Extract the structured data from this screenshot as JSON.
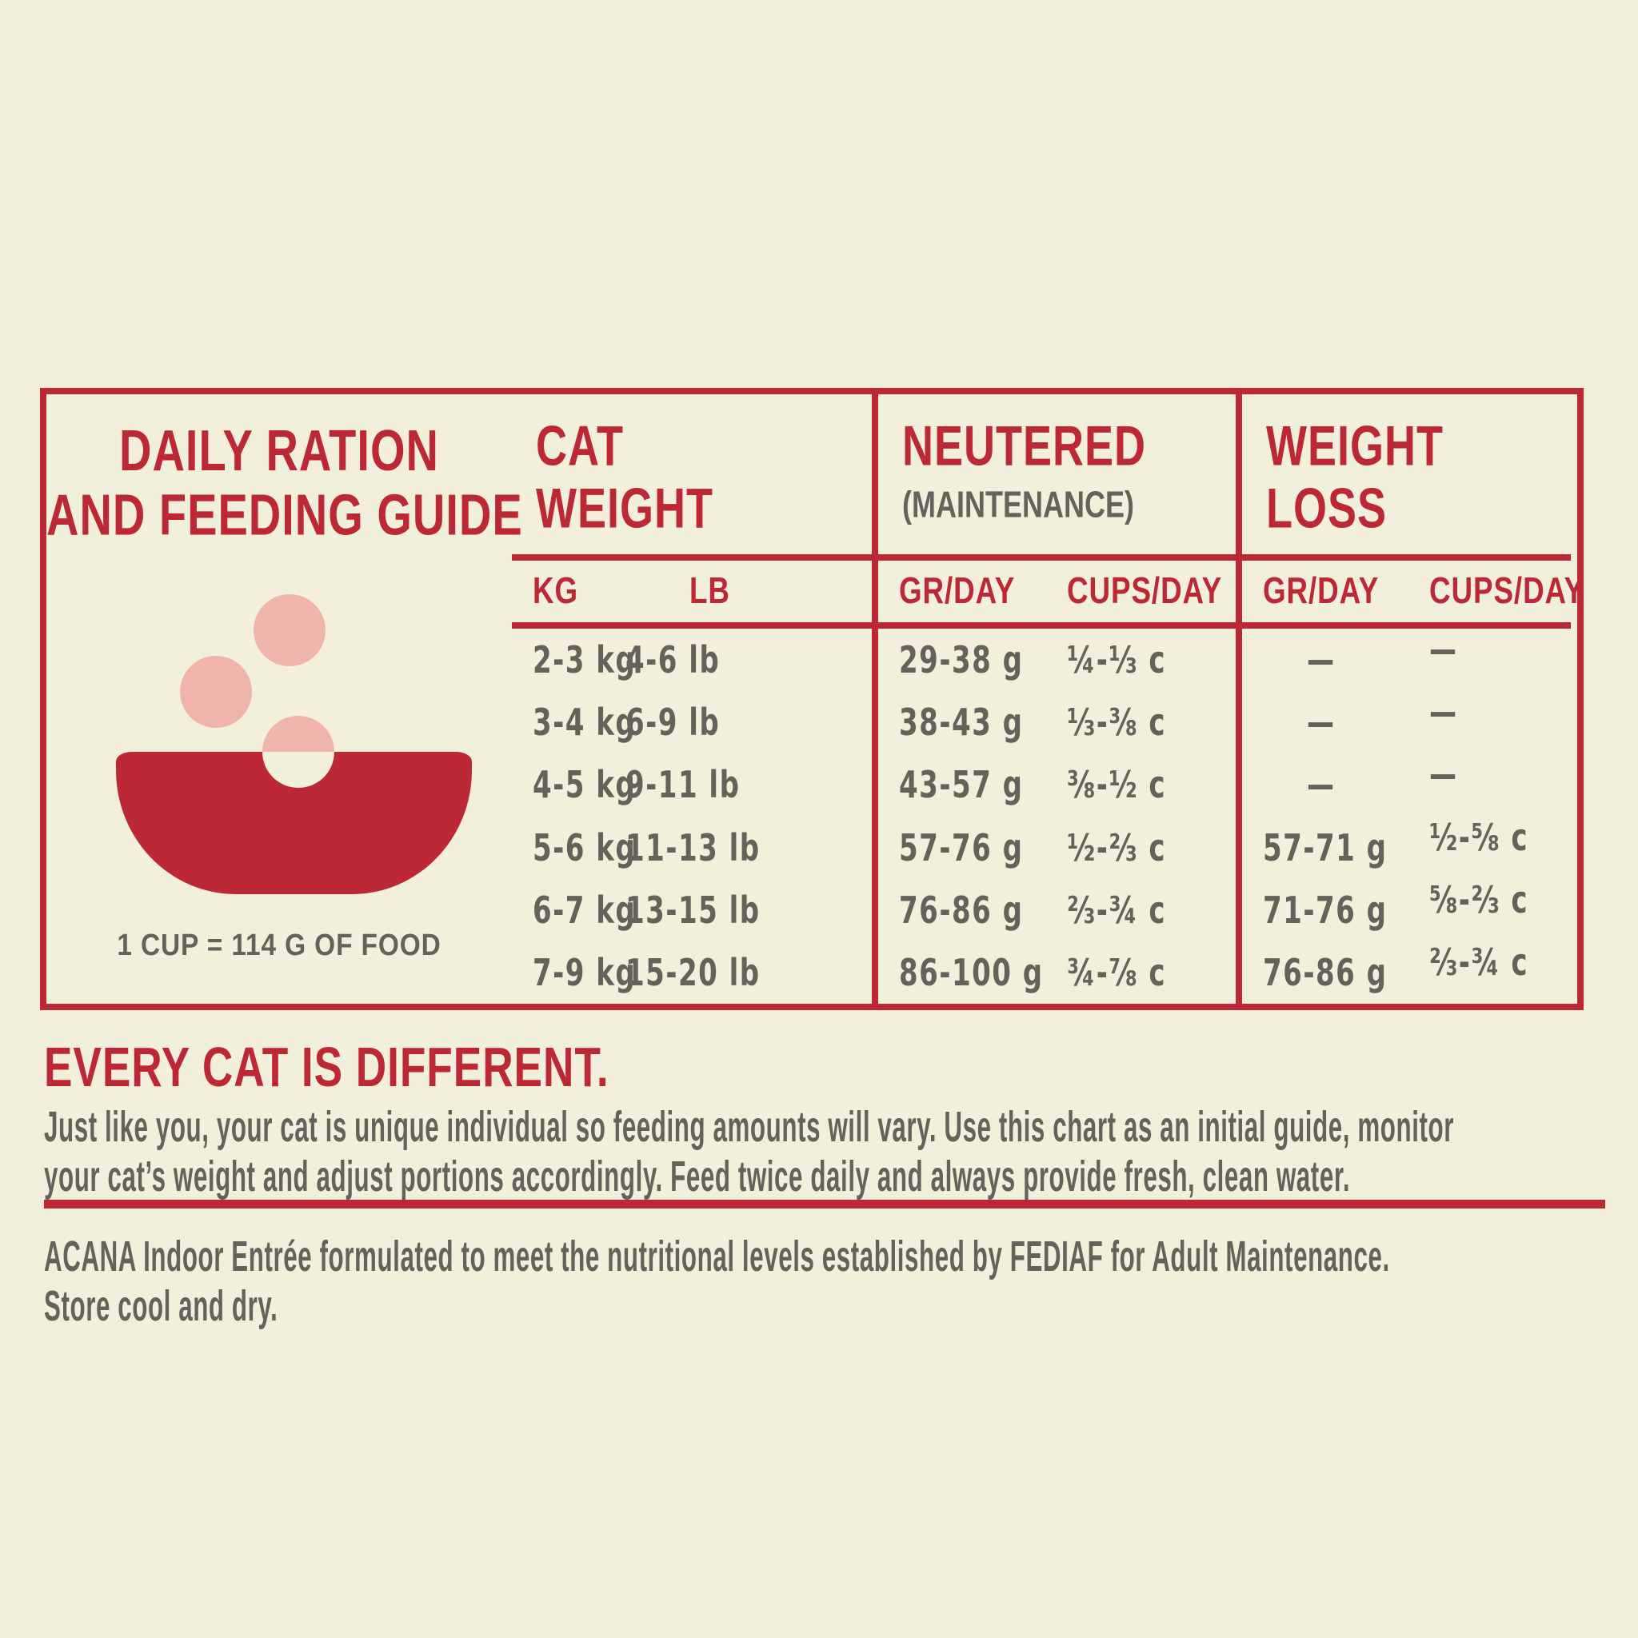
{
  "colors": {
    "accent_red": "#bd2837",
    "kibble_pink": "#efb5ad",
    "background_cream": "#f2efdc",
    "text_gray": "#64625a"
  },
  "table": {
    "panel": {
      "title_line1": "DAILY RATION",
      "title_line2": "AND FEEDING GUIDE",
      "cup_note": "1 CUP = 114 G OF FOOD"
    },
    "cat_weight": {
      "line1": "CAT",
      "line2": "WEIGHT",
      "sub1": "KG",
      "sub2": "LB"
    },
    "neutered": {
      "title": "NEUTERED",
      "subtitle": "(MAINTENANCE)",
      "sub1": "GR/DAY",
      "sub2": "CUPS/DAY"
    },
    "weight_loss": {
      "line1": "WEIGHT",
      "line2": "LOSS",
      "sub1": "GR/DAY",
      "sub2": "CUPS/DAY"
    },
    "rows": [
      {
        "kg": "2-3 kg",
        "lb": "4-6 lb",
        "neutered_g": "29-38 g",
        "neutered_cups": "¼-⅓ c",
        "loss_g": "—",
        "loss_cups": "—"
      },
      {
        "kg": "3-4 kg",
        "lb": "6-9 lb",
        "neutered_g": "38-43 g",
        "neutered_cups": "⅓-⅜ c",
        "loss_g": "—",
        "loss_cups": "—"
      },
      {
        "kg": "4-5 kg",
        "lb": "9-11 lb",
        "neutered_g": "43-57 g",
        "neutered_cups": "⅜-½ c",
        "loss_g": "—",
        "loss_cups": "—"
      },
      {
        "kg": "5-6 kg",
        "lb": "11-13 lb",
        "neutered_g": "57-76 g",
        "neutered_cups": "½-⅔ c",
        "loss_g": "57-71 g",
        "loss_cups": "½-⅝ c"
      },
      {
        "kg": "6-7 kg",
        "lb": "13-15 lb",
        "neutered_g": "76-86 g",
        "neutered_cups": "⅔-¾ c",
        "loss_g": "71-76 g",
        "loss_cups": "⅝-⅔ c"
      },
      {
        "kg": "7-9 kg",
        "lb": "15-20 lb",
        "neutered_g": "86-100 g",
        "neutered_cups": "¾-⅞ c",
        "loss_g": "76-86 g",
        "loss_cups": "⅔-¾ c"
      }
    ]
  },
  "footer": {
    "heading": "EVERY CAT IS DIFFERENT.",
    "para1_line1": "Just like you, your cat is unique individual so feeding amounts will vary. Use this chart as an initial guide, monitor",
    "para1_line2": "your cat’s weight and adjust portions accordingly. Feed twice daily and always provide fresh, clean water.",
    "para2_line1": "ACANA Indoor Entrée formulated to meet the nutritional levels established by FEDIAF  for Adult Maintenance.",
    "para2_line2": "Store cool and dry."
  }
}
